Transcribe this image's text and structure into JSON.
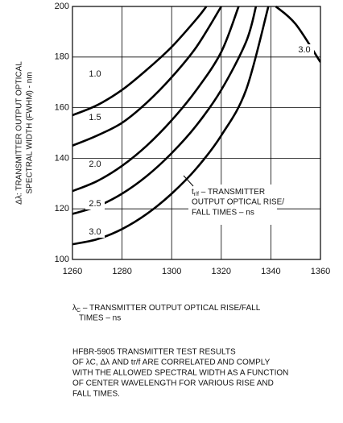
{
  "chart_data": {
    "type": "line",
    "y_label": [
      "Δλ: TRANSMITTER OUTPUT OPTICAL",
      "SPECTRAL WIDTH (FWHM) - nm"
    ],
    "x_label": {
      "symbol": "λ",
      "subscript": "C",
      "lines": [
        " – TRANSMITTER OUTPUT OPTICAL RISE/FALL",
        "TIMES – ns"
      ]
    },
    "annotation": {
      "symbol": "t",
      "subscript": "r/f",
      "lines": [
        " – TRANSMITTER",
        "OUTPUT OPTICAL RISE/",
        "FALL TIMES – ns"
      ]
    },
    "series": [
      {
        "name": "1.0",
        "color": "#000000",
        "x": [
          1260,
          1270,
          1280,
          1290,
          1300,
          1310,
          1314
        ],
        "values": [
          157,
          161,
          167,
          175,
          184,
          195,
          200
        ]
      },
      {
        "name": "1.5",
        "color": "#000000",
        "x": [
          1260,
          1270,
          1280,
          1290,
          1300,
          1310,
          1320
        ],
        "values": [
          145,
          149,
          154,
          162,
          172,
          184,
          200
        ]
      },
      {
        "name": "2.0",
        "color": "#000000",
        "x": [
          1260,
          1270,
          1280,
          1290,
          1300,
          1310,
          1320,
          1327
        ],
        "values": [
          127,
          131,
          137,
          145,
          155,
          167,
          182,
          200
        ]
      },
      {
        "name": "2.5",
        "color": "#000000",
        "x": [
          1260,
          1270,
          1280,
          1290,
          1300,
          1310,
          1320,
          1330,
          1334
        ],
        "values": [
          118,
          121,
          126,
          133,
          142,
          153,
          167,
          186,
          200
        ]
      },
      {
        "name": "3.0",
        "color": "#000000",
        "x": [
          1260,
          1270,
          1280,
          1290,
          1300,
          1310,
          1320,
          1330,
          1339
        ],
        "values": [
          106,
          108,
          112,
          118,
          126,
          136,
          149,
          167,
          200
        ]
      },
      {
        "name": "3.0",
        "color": "#000000",
        "x": [
          1342,
          1350,
          1360
        ],
        "values": [
          200,
          193,
          178
        ]
      }
    ],
    "xlim": [
      1260,
      1360
    ],
    "xticks": [
      1260,
      1280,
      1300,
      1320,
      1340,
      1360
    ],
    "ylim": [
      100,
      200
    ],
    "yticks": [
      100,
      120,
      140,
      160,
      180,
      200
    ],
    "grid": true,
    "caption": [
      "HFBR-5905 TRANSMITTER TEST RESULTS",
      "OF λC, Δλ AND tr/f ARE CORRELATED AND  COMPLY",
      "WITH THE ALLOWED SPECTRAL WIDTH AS A FUNCTION",
      "OF CENTER WAVELENGTH FOR VARIOUS RISE AND",
      "FALL TIMES."
    ]
  }
}
